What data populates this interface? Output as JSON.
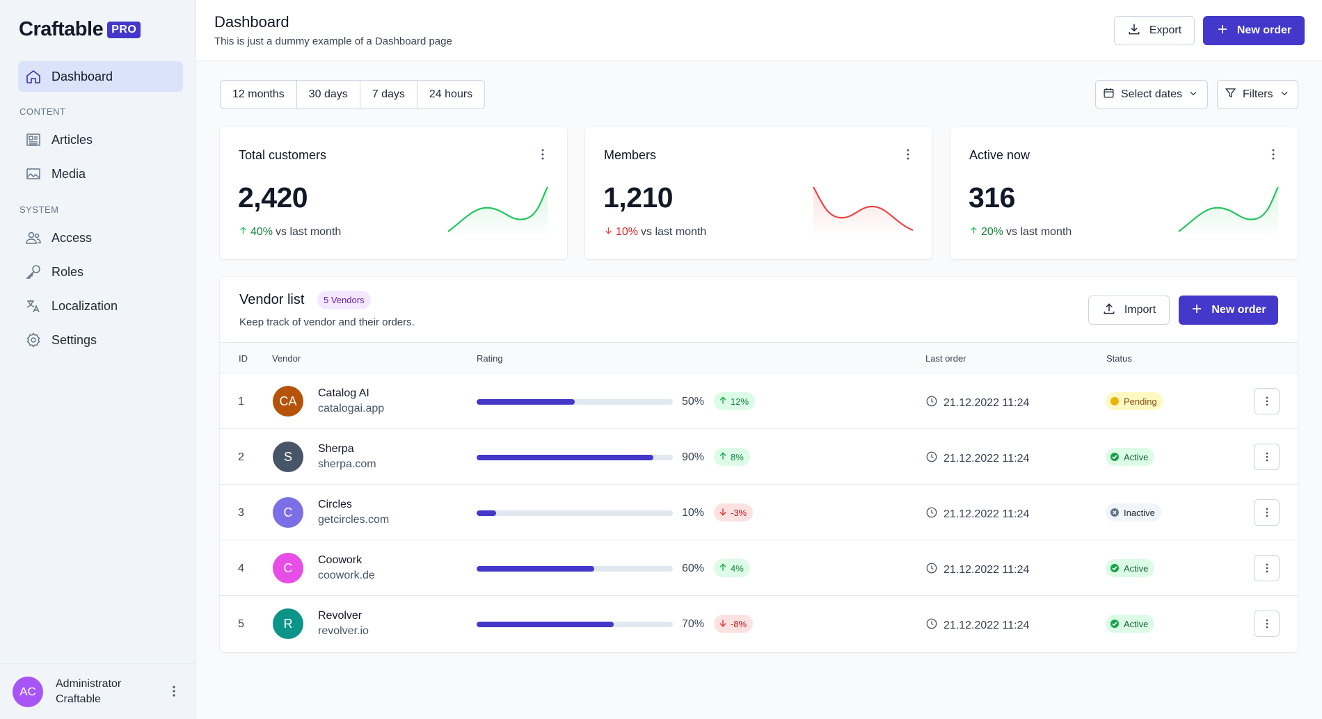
{
  "brand": {
    "name": "Craftable",
    "badge": "PRO"
  },
  "sidebar": {
    "dashboard": "Dashboard",
    "section_content": "CONTENT",
    "articles": "Articles",
    "media": "Media",
    "section_system": "SYSTEM",
    "access": "Access",
    "roles": "Roles",
    "localization": "Localization",
    "settings": "Settings"
  },
  "user": {
    "initials": "AC",
    "name": "Administrator",
    "org": "Craftable"
  },
  "header": {
    "title": "Dashboard",
    "subtitle": "This is just a dummy example of a Dashboard page",
    "export_label": "Export",
    "new_order_label": "New order"
  },
  "filters": {
    "ranges": [
      "12 months",
      "30 days",
      "7 days",
      "24 hours"
    ],
    "select_dates": "Select dates",
    "filters": "Filters"
  },
  "stats": [
    {
      "title": "Total customers",
      "value": "2,420",
      "change": "40%",
      "direction": "up",
      "suffix": "vs last month",
      "color": "#22c55e"
    },
    {
      "title": "Members",
      "value": "1,210",
      "change": "10%",
      "direction": "down",
      "suffix": "vs last month",
      "color": "#ef4444"
    },
    {
      "title": "Active now",
      "value": "316",
      "change": "20%",
      "direction": "up",
      "suffix": "vs last month",
      "color": "#22c55e"
    }
  ],
  "vendors": {
    "title": "Vendor list",
    "badge": "5 Vendors",
    "subtitle": "Keep track of vendor and their orders.",
    "import_label": "Import",
    "new_order_label": "New order",
    "columns": {
      "id": "ID",
      "vendor": "Vendor",
      "rating": "Rating",
      "last_order": "Last order",
      "status": "Status"
    },
    "rows": [
      {
        "id": "1",
        "initials": "CA",
        "avatar_color": "#b45309",
        "name": "Catalog AI",
        "domain": "catalogai.app",
        "rating": 0.5,
        "rating_label": "50%",
        "change": "12%",
        "change_dir": "up",
        "last_order": "21.12.2022 11:24",
        "status": "Pending",
        "status_type": "pending"
      },
      {
        "id": "2",
        "initials": "S",
        "avatar_color": "#475569",
        "name": "Sherpa",
        "domain": "sherpa.com",
        "rating": 0.9,
        "rating_label": "90%",
        "change": "8%",
        "change_dir": "up",
        "last_order": "21.12.2022 11:24",
        "status": "Active",
        "status_type": "active"
      },
      {
        "id": "3",
        "initials": "C",
        "avatar_color": "#7c6ee6",
        "name": "Circles",
        "domain": "getcircles.com",
        "rating": 0.1,
        "rating_label": "10%",
        "change": "-3%",
        "change_dir": "down",
        "last_order": "21.12.2022 11:24",
        "status": "Inactive",
        "status_type": "inactive"
      },
      {
        "id": "4",
        "initials": "C",
        "avatar_color": "#e64ee6",
        "name": "Coowork",
        "domain": "coowork.de",
        "rating": 0.6,
        "rating_label": "60%",
        "change": "4%",
        "change_dir": "up",
        "last_order": "21.12.2022 11:24",
        "status": "Active",
        "status_type": "active"
      },
      {
        "id": "5",
        "initials": "R",
        "avatar_color": "#0d9488",
        "name": "Revolver",
        "domain": "revolver.io",
        "rating": 0.7,
        "rating_label": "70%",
        "change": "-8%",
        "change_dir": "down",
        "last_order": "21.12.2022 11:24",
        "status": "Active",
        "status_type": "active"
      }
    ]
  }
}
